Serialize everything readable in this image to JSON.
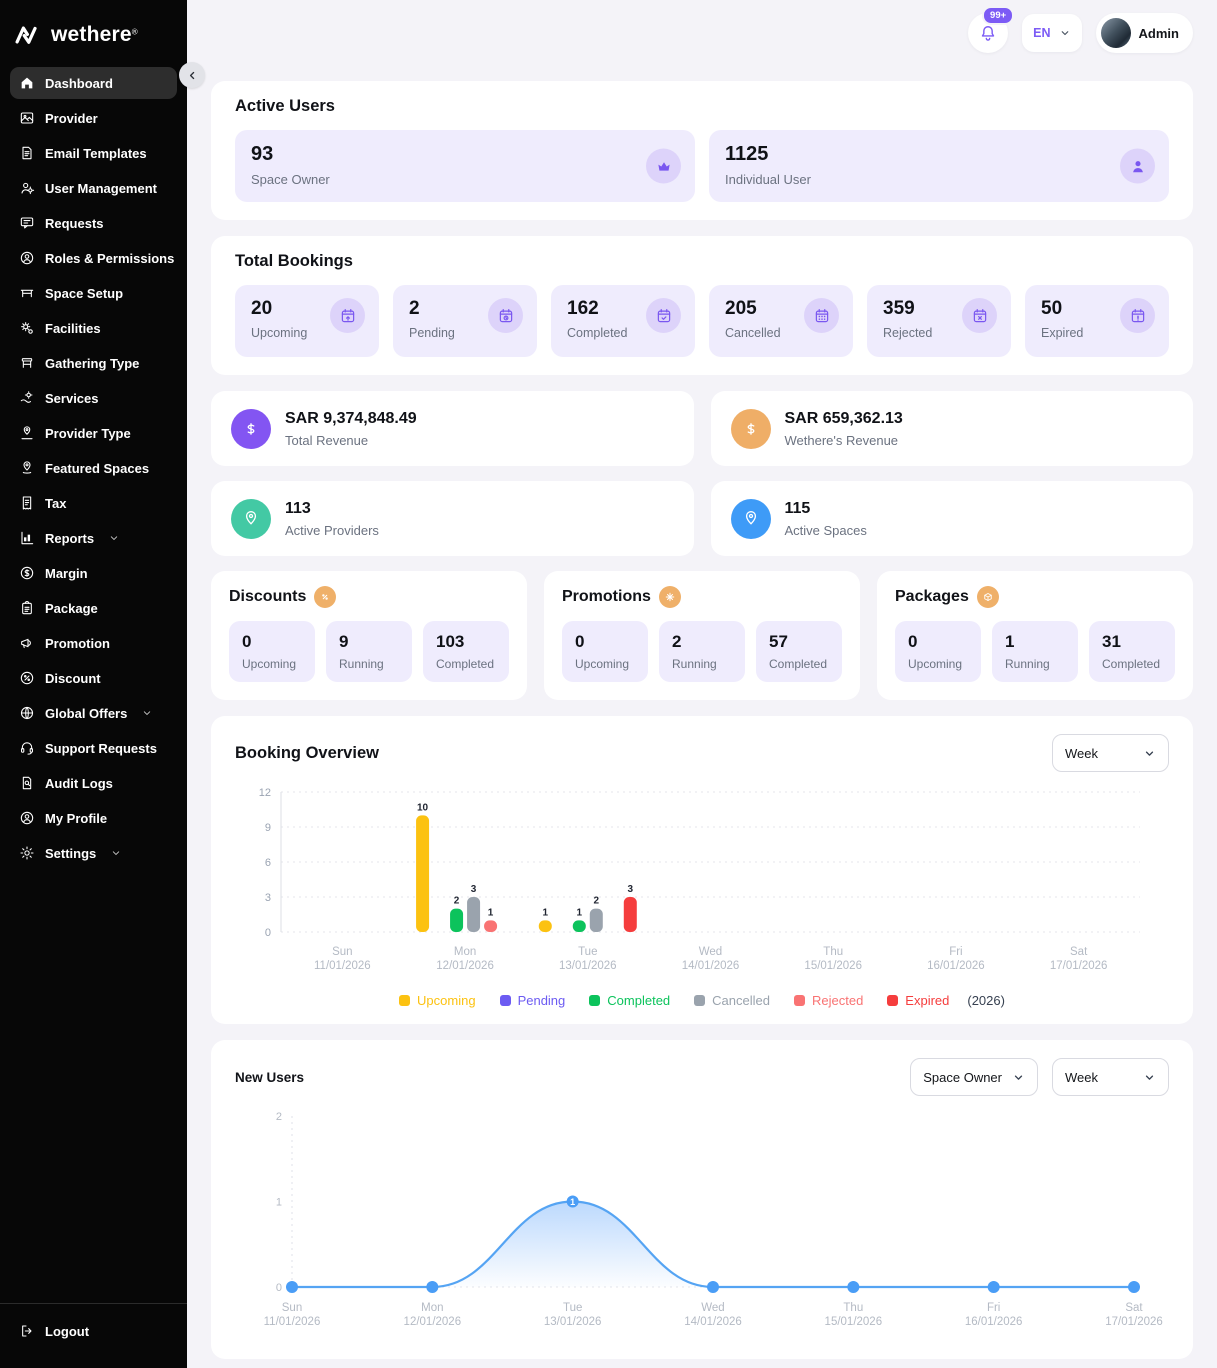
{
  "brand": {
    "name": "wethere",
    "trademark": "®"
  },
  "header": {
    "notification_badge": "99+",
    "language": "EN",
    "user": "Admin"
  },
  "sidebar": {
    "items": [
      {
        "label": "Dashboard",
        "icon": "home-icon",
        "active": true
      },
      {
        "label": "Provider",
        "icon": "provider-icon"
      },
      {
        "label": "Email Templates",
        "icon": "email-templates-icon"
      },
      {
        "label": "User Management",
        "icon": "user-management-icon",
        "chevron": true
      },
      {
        "label": "Requests",
        "icon": "requests-icon"
      },
      {
        "label": "Roles & Permissions",
        "icon": "roles-permissions-icon"
      },
      {
        "label": "Space Setup",
        "icon": "space-setup-icon"
      },
      {
        "label": "Facilities",
        "icon": "facilities-icon"
      },
      {
        "label": "Gathering Type",
        "icon": "gathering-type-icon"
      },
      {
        "label": "Services",
        "icon": "services-icon"
      },
      {
        "label": "Provider Type",
        "icon": "provider-type-icon"
      },
      {
        "label": "Featured Spaces",
        "icon": "featured-spaces-icon"
      },
      {
        "label": "Tax",
        "icon": "tax-icon"
      },
      {
        "label": "Reports",
        "icon": "reports-icon",
        "chevron": true
      },
      {
        "label": "Margin",
        "icon": "margin-icon"
      },
      {
        "label": "Package",
        "icon": "package-icon"
      },
      {
        "label": "Promotion",
        "icon": "promotion-icon"
      },
      {
        "label": "Discount",
        "icon": "discount-icon"
      },
      {
        "label": "Global Offers",
        "icon": "global-offers-icon",
        "chevron": true
      },
      {
        "label": "Support Requests",
        "icon": "support-requests-icon"
      },
      {
        "label": "Audit Logs",
        "icon": "audit-logs-icon"
      },
      {
        "label": "My Profile",
        "icon": "my-profile-icon"
      },
      {
        "label": "Settings",
        "icon": "settings-icon",
        "chevron": true
      }
    ],
    "logout": "Logout"
  },
  "active_users": {
    "title": "Active Users",
    "tiles": [
      {
        "value": "93",
        "label": "Space Owner",
        "icon": "space-owner-icon"
      },
      {
        "value": "1125",
        "label": "Individual User",
        "icon": "individual-user-icon"
      }
    ]
  },
  "total_bookings": {
    "title": "Total Bookings",
    "tiles": [
      {
        "value": "20",
        "label": "Upcoming",
        "icon": "calendar-up-icon"
      },
      {
        "value": "2",
        "label": "Pending",
        "icon": "calendar-clock-icon"
      },
      {
        "value": "162",
        "label": "Completed",
        "icon": "calendar-check-icon"
      },
      {
        "value": "205",
        "label": "Cancelled",
        "icon": "calendar-grid-icon"
      },
      {
        "value": "359",
        "label": "Rejected",
        "icon": "calendar-x-icon"
      },
      {
        "value": "50",
        "label": "Expired",
        "icon": "calendar-warning-icon"
      }
    ]
  },
  "summary_cards": [
    {
      "value": "SAR 9,374,848.49",
      "label": "Total Revenue",
      "icon": "dollar-icon",
      "color": "#8355f2"
    },
    {
      "value": "SAR 659,362.13",
      "label": "Wethere's Revenue",
      "icon": "dollar-icon",
      "color": "#efae67"
    },
    {
      "value": "113",
      "label": "Active Providers",
      "icon": "location-icon",
      "color": "#43c9a4"
    },
    {
      "value": "115",
      "label": "Active Spaces",
      "icon": "location-icon",
      "color": "#3e9bf7"
    }
  ],
  "promo_sections": [
    {
      "title": "Discounts",
      "icon": "percent-badge-icon",
      "tiles": [
        {
          "value": "0",
          "label": "Upcoming"
        },
        {
          "value": "9",
          "label": "Running"
        },
        {
          "value": "103",
          "label": "Completed"
        }
      ]
    },
    {
      "title": "Promotions",
      "icon": "spark-badge-icon",
      "tiles": [
        {
          "value": "0",
          "label": "Upcoming"
        },
        {
          "value": "2",
          "label": "Running"
        },
        {
          "value": "57",
          "label": "Completed"
        }
      ]
    },
    {
      "title": "Packages",
      "icon": "box-badge-icon",
      "tiles": [
        {
          "value": "0",
          "label": "Upcoming"
        },
        {
          "value": "1",
          "label": "Running"
        },
        {
          "value": "31",
          "label": "Completed"
        }
      ]
    }
  ],
  "booking_overview": {
    "title": "Booking Overview",
    "period_filter": "Week"
  },
  "new_users": {
    "title": "New Users",
    "user_type_filter": "Space Owner",
    "period_filter": "Week"
  },
  "chart_data": [
    {
      "type": "bar",
      "title": "Booking Overview",
      "categories": [
        "Sun",
        "Mon",
        "Tue",
        "Wed",
        "Thu",
        "Fri",
        "Sat"
      ],
      "category_dates": [
        "11/01/2026",
        "12/01/2026",
        "13/01/2026",
        "14/01/2026",
        "15/01/2026",
        "16/01/2026",
        "17/01/2026"
      ],
      "series": [
        {
          "name": "Upcoming",
          "color": "#fcc211",
          "values": [
            0,
            10,
            1,
            0,
            0,
            0,
            0
          ]
        },
        {
          "name": "Pending",
          "color": "#6c5bf2",
          "values": [
            0,
            0,
            0,
            0,
            0,
            0,
            0
          ]
        },
        {
          "name": "Completed",
          "color": "#0cc35c",
          "values": [
            0,
            2,
            1,
            0,
            0,
            0,
            0
          ]
        },
        {
          "name": "Cancelled",
          "color": "#9aa3ad",
          "values": [
            0,
            3,
            2,
            0,
            0,
            0,
            0
          ]
        },
        {
          "name": "Rejected",
          "color": "#f97373",
          "values": [
            0,
            1,
            0,
            0,
            0,
            0,
            0
          ]
        },
        {
          "name": "Expired",
          "color": "#f53d3d",
          "values": [
            0,
            0,
            3,
            0,
            0,
            0,
            0
          ]
        }
      ],
      "ylim": [
        0,
        12
      ],
      "yticks": [
        0,
        3,
        6,
        9,
        12
      ],
      "legend_position": "bottom",
      "legend_suffix": "(2026)",
      "grid": "dashed-horizontal"
    },
    {
      "type": "line",
      "title": "New Users",
      "categories": [
        "Sun",
        "Mon",
        "Tue",
        "Wed",
        "Thu",
        "Fri",
        "Sat"
      ],
      "category_dates": [
        "11/01/2026",
        "12/01/2026",
        "13/01/2026",
        "14/01/2026",
        "15/01/2026",
        "16/01/2026",
        "17/01/2026"
      ],
      "series": [
        {
          "name": "New Users",
          "color": "#55a4f3",
          "values": [
            0,
            0,
            1,
            0,
            0,
            0,
            0
          ]
        }
      ],
      "ylim": [
        0,
        2
      ],
      "yticks": [
        0,
        1,
        2
      ],
      "area_fill": true,
      "point_labels": true
    }
  ]
}
